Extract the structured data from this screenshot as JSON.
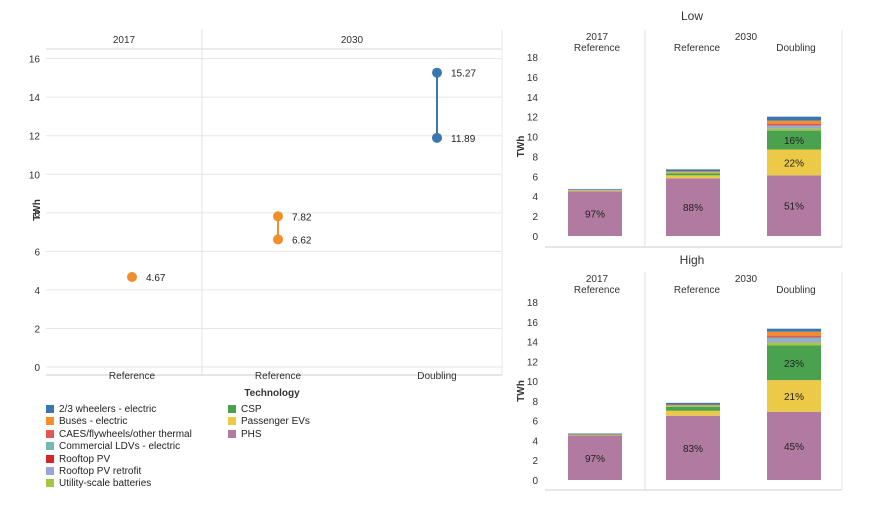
{
  "left_chart": {
    "panels": [
      "2017",
      "2030"
    ],
    "ylabel": "TWh",
    "xlabel": "Technology",
    "yticks": [
      0,
      2,
      4,
      6,
      8,
      10,
      12,
      14,
      16
    ],
    "categories": [
      "Reference",
      "Reference",
      "Doubling"
    ]
  },
  "right_charts": [
    {
      "title": "Low",
      "panels": [
        "2017",
        "2030"
      ],
      "ylabel": "TWh",
      "yticks": [
        0,
        2,
        4,
        6,
        8,
        10,
        12,
        14,
        16,
        18
      ],
      "categories": [
        "Reference",
        "Reference",
        "Doubling"
      ]
    },
    {
      "title": "High",
      "panels": [
        "2017",
        "2030"
      ],
      "ylabel": "TWh",
      "yticks": [
        0,
        2,
        4,
        6,
        8,
        10,
        12,
        14,
        16,
        18
      ],
      "categories": [
        "Reference",
        "Reference",
        "Doubling"
      ]
    }
  ],
  "legend": {
    "items": [
      {
        "label": "2/3 wheelers - electric",
        "color": "#3a77ae"
      },
      {
        "label": "Buses - electric",
        "color": "#f28e2b"
      },
      {
        "label": "CAES/flywheels/other thermal",
        "color": "#e15759"
      },
      {
        "label": "Commercial LDVs - electric",
        "color": "#76b7b2"
      },
      {
        "label": "Rooftop PV",
        "color": "#d62728"
      },
      {
        "label": "Rooftop PV retrofit",
        "color": "#9aa6d6"
      },
      {
        "label": "Utility-scale batteries",
        "color": "#a5c640"
      },
      {
        "label": "CSP",
        "color": "#4aa24f"
      },
      {
        "label": "Passenger EVs",
        "color": "#edc948"
      },
      {
        "label": "PHS",
        "color": "#b07aa1"
      }
    ]
  },
  "chart_data": [
    {
      "type": "scatter",
      "title": "",
      "xlabel": "Technology",
      "ylabel": "TWh",
      "ylim": [
        0,
        16.5
      ],
      "panels": [
        "2017",
        "2030"
      ],
      "categories": [
        "Reference",
        "Reference",
        "Doubling"
      ],
      "points": [
        {
          "panel": "2017",
          "category": "Reference",
          "low": 4.67,
          "high": 4.67,
          "labels": [
            "4.67"
          ],
          "color": "#f28e2b"
        },
        {
          "panel": "2030",
          "category": "Reference",
          "low": 6.62,
          "high": 7.82,
          "labels": [
            "6.62",
            "7.82"
          ],
          "color": "#f28e2b"
        },
        {
          "panel": "2030",
          "category": "Doubling",
          "low": 11.89,
          "high": 15.27,
          "labels": [
            "11.89",
            "15.27"
          ],
          "color": "#3a77ae"
        }
      ]
    },
    {
      "type": "bar",
      "stacked": true,
      "title": "Low",
      "ylabel": "TWh",
      "ylim": [
        0,
        18
      ],
      "panels": [
        "2017",
        "2030"
      ],
      "categories": [
        "Reference",
        "Reference",
        "Doubling"
      ],
      "series": [
        {
          "name": "PHS",
          "color": "#b07aa1",
          "values": [
            4.5,
            5.8,
            6.1
          ],
          "labels": [
            "97%",
            "88%",
            "51%"
          ]
        },
        {
          "name": "Passenger EVs",
          "color": "#edc948",
          "values": [
            0.1,
            0.3,
            2.6
          ],
          "labels": [
            "",
            "",
            "22%"
          ]
        },
        {
          "name": "CSP",
          "color": "#4aa24f",
          "values": [
            0,
            0.2,
            1.9
          ],
          "labels": [
            "",
            "",
            "16%"
          ]
        },
        {
          "name": "Utility-scale batteries",
          "color": "#a5c640",
          "values": [
            0,
            0.1,
            0.2
          ],
          "labels": [
            "",
            "",
            ""
          ]
        },
        {
          "name": "Rooftop PV retrofit",
          "color": "#9aa6d6",
          "values": [
            0,
            0,
            0.2
          ],
          "labels": [
            "",
            "",
            ""
          ]
        },
        {
          "name": "Commercial LDVs - electric",
          "color": "#76b7b2",
          "values": [
            0,
            0,
            0.1
          ],
          "labels": [
            "",
            "",
            ""
          ]
        },
        {
          "name": "CAES/flywheels/other thermal",
          "color": "#e15759",
          "values": [
            0,
            0,
            0.2
          ],
          "labels": [
            "",
            "",
            ""
          ]
        },
        {
          "name": "Buses - electric",
          "color": "#f28e2b",
          "values": [
            0,
            0.1,
            0.3
          ],
          "labels": [
            "",
            "",
            ""
          ]
        },
        {
          "name": "2/3 wheelers - electric",
          "color": "#3a77ae",
          "values": [
            0.1,
            0.2,
            0.4
          ],
          "labels": [
            "",
            "",
            ""
          ]
        }
      ]
    },
    {
      "type": "bar",
      "stacked": true,
      "title": "High",
      "ylabel": "TWh",
      "ylim": [
        0,
        18
      ],
      "panels": [
        "2017",
        "2030"
      ],
      "categories": [
        "Reference",
        "Reference",
        "Doubling"
      ],
      "series": [
        {
          "name": "PHS",
          "color": "#b07aa1",
          "values": [
            4.5,
            6.5,
            6.9
          ],
          "labels": [
            "97%",
            "83%",
            "45%"
          ]
        },
        {
          "name": "Passenger EVs",
          "color": "#edc948",
          "values": [
            0.1,
            0.5,
            3.2
          ],
          "labels": [
            "",
            "",
            "21%"
          ]
        },
        {
          "name": "CSP",
          "color": "#4aa24f",
          "values": [
            0,
            0.4,
            3.5
          ],
          "labels": [
            "",
            "",
            "23%"
          ]
        },
        {
          "name": "Utility-scale batteries",
          "color": "#a5c640",
          "values": [
            0,
            0.1,
            0.3
          ],
          "labels": [
            "",
            "",
            ""
          ]
        },
        {
          "name": "Rooftop PV retrofit",
          "color": "#9aa6d6",
          "values": [
            0,
            0,
            0.3
          ],
          "labels": [
            "",
            "",
            ""
          ]
        },
        {
          "name": "Commercial LDVs - electric",
          "color": "#76b7b2",
          "values": [
            0,
            0,
            0.2
          ],
          "labels": [
            "",
            "",
            ""
          ]
        },
        {
          "name": "CAES/flywheels/other thermal",
          "color": "#e15759",
          "values": [
            0,
            0,
            0.2
          ],
          "labels": [
            "",
            "",
            ""
          ]
        },
        {
          "name": "Buses - electric",
          "color": "#f28e2b",
          "values": [
            0,
            0.1,
            0.4
          ],
          "labels": [
            "",
            "",
            ""
          ]
        },
        {
          "name": "2/3 wheelers - electric",
          "color": "#3a77ae",
          "values": [
            0.1,
            0.2,
            0.3
          ],
          "labels": [
            "",
            "",
            ""
          ]
        }
      ]
    }
  ]
}
